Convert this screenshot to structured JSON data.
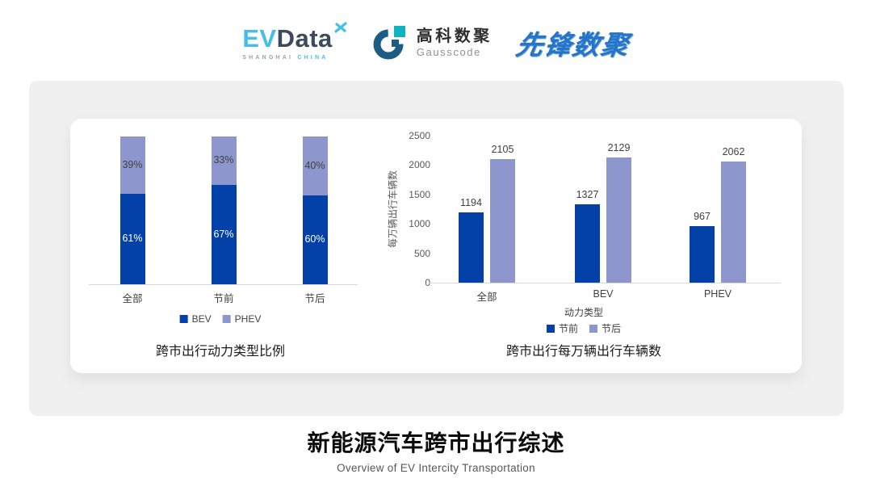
{
  "header": {
    "evdata": {
      "ev": "EV",
      "data": "Data",
      "sub_left": "SHANGHAI",
      "sub_right": "CHINA"
    },
    "gausscode": {
      "cn": "高科数聚",
      "en": "Gausscode"
    },
    "xianfeng": {
      "text": "先锋数聚"
    }
  },
  "icons": {
    "evdata_sparkle": "x-sparkle",
    "gausscode_mark": "g-ring"
  },
  "colors": {
    "primary": "#0341A8",
    "secondary": "#8D97CE",
    "panel": "#F0F0F1",
    "axis_line": "#D9D9D9",
    "tick_text": "#595959",
    "label_text": "#404040",
    "pct_on_dark": "#FFFFFF",
    "evdata_blue": "#45BEE8",
    "evdata_dark": "#3D4A5C",
    "gauss_ring": "#1E5C85",
    "gauss_teal": "#10B4C0",
    "xianfeng_blue": "#2574C8"
  },
  "chart_data": [
    {
      "type": "bar",
      "subtype": "stacked-percent",
      "title": "跨市出行动力类型比例",
      "categories": [
        "全部",
        "节前",
        "节后"
      ],
      "series": [
        {
          "name": "BEV",
          "values": [
            61,
            67,
            60
          ]
        },
        {
          "name": "PHEV",
          "values": [
            39,
            33,
            40
          ]
        }
      ],
      "value_format": "percent",
      "ylim": [
        0,
        100
      ],
      "grid": false,
      "legend_position": "bottom"
    },
    {
      "type": "bar",
      "subtype": "grouped",
      "title": "跨市出行每万辆出行车辆数",
      "xlabel": "动力类型",
      "ylabel": "每万辆出行车辆数",
      "categories": [
        "全部",
        "BEV",
        "PHEV"
      ],
      "series": [
        {
          "name": "节前",
          "values": [
            1194,
            1327,
            967
          ]
        },
        {
          "name": "节后",
          "values": [
            2105,
            2129,
            2062
          ]
        }
      ],
      "yticks": [
        0,
        500,
        1000,
        1500,
        2000,
        2500
      ],
      "ylim": [
        0,
        2500
      ],
      "grid": false,
      "legend_position": "bottom"
    }
  ],
  "footer": {
    "title": "新能源汽车跨市出行综述",
    "subtitle": "Overview of EV Intercity Transportation"
  }
}
